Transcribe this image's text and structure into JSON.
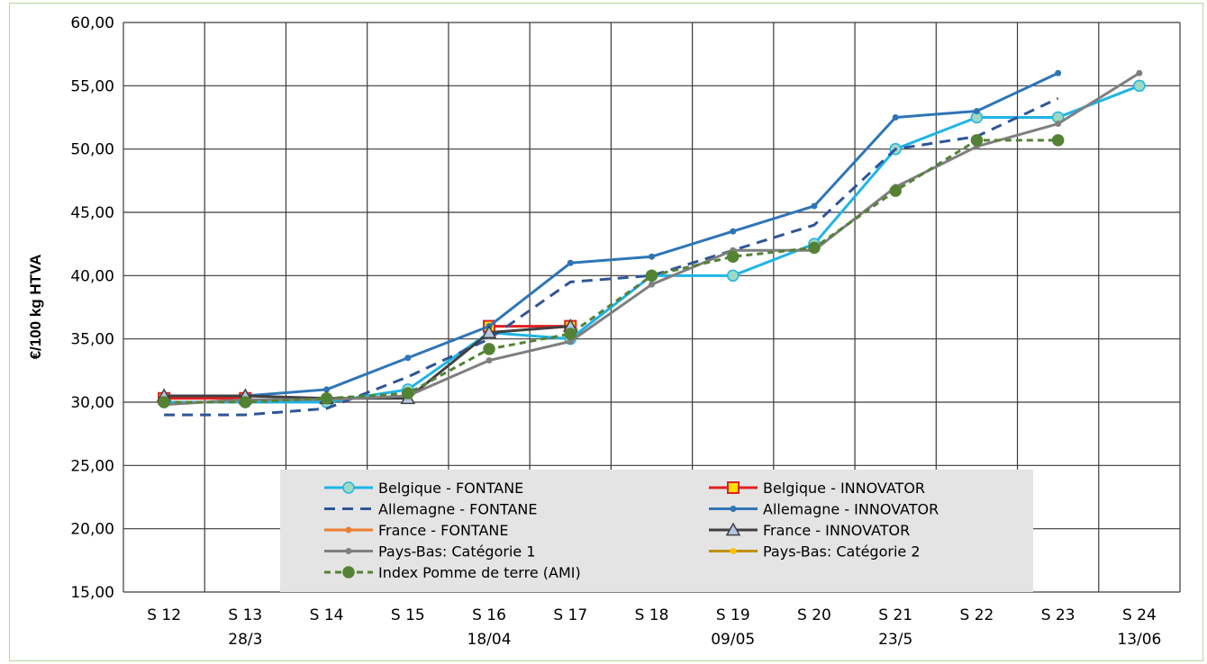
{
  "chart_data": {
    "type": "line",
    "title": "",
    "ylabel": "€/100 kg HTVA",
    "xlabel": "",
    "ylim": [
      15,
      60
    ],
    "ytick_step": 5,
    "ytick_labels": [
      "15,00",
      "20,00",
      "25,00",
      "30,00",
      "35,00",
      "40,00",
      "45,00",
      "50,00",
      "55,00",
      "60,00"
    ],
    "grid": true,
    "legend_position": "bottom-center",
    "categories": [
      "S 12",
      "S 13",
      "S 14",
      "S 15",
      "S 16",
      "S 17",
      "S 18",
      "S 19",
      "S 20",
      "S 21",
      "S 22",
      "S 23",
      "S 24"
    ],
    "category_dates": [
      "",
      "28/3",
      "",
      "",
      "18/04",
      "",
      "",
      "09/05",
      "",
      "23/5",
      "",
      "",
      "13/06"
    ],
    "series": [
      {
        "name": "Belgique - FONTANE",
        "color": "#1fb4e6",
        "dash": "",
        "width": 3,
        "marker": "circle",
        "marker_fill": "#9fd9c2",
        "values": [
          30.0,
          30.0,
          30.0,
          31.0,
          35.5,
          35.0,
          40.0,
          40.0,
          42.5,
          50.0,
          52.5,
          52.5,
          55.0
        ]
      },
      {
        "name": "Belgique - INNOVATOR",
        "color": "#e02020",
        "dash": "",
        "width": 3,
        "marker": "square",
        "marker_fill": "#ffe000",
        "values": [
          30.3,
          30.3,
          null,
          null,
          36.0,
          36.0,
          null,
          null,
          null,
          null,
          null,
          null,
          null
        ]
      },
      {
        "name": "Allemagne - FONTANE",
        "color": "#2f5597",
        "dash": "12,8",
        "width": 3,
        "marker": "none",
        "marker_fill": "",
        "values": [
          29.0,
          29.0,
          29.5,
          32.0,
          35.0,
          39.5,
          40.0,
          42.0,
          44.0,
          50.0,
          51.0,
          54.0,
          null
        ]
      },
      {
        "name": "Allemagne - INNOVATOR",
        "color": "#2e75b6",
        "dash": "",
        "width": 3,
        "marker": "dot",
        "marker_fill": "#2e75b6",
        "values": [
          30.5,
          30.5,
          31.0,
          33.5,
          36.0,
          41.0,
          41.5,
          43.5,
          45.5,
          52.5,
          53.0,
          56.0,
          null
        ]
      },
      {
        "name": "France - FONTANE",
        "color": "#ed7d31",
        "dash": "",
        "width": 3,
        "marker": "dot",
        "marker_fill": "#ed7d31",
        "values": [
          null,
          null,
          null,
          null,
          null,
          null,
          null,
          null,
          null,
          null,
          null,
          null,
          null
        ]
      },
      {
        "name": "France - INNOVATOR",
        "color": "#404040",
        "dash": "",
        "width": 3,
        "marker": "triangle",
        "marker_fill": "#b4c7e7",
        "values": [
          30.5,
          30.5,
          30.3,
          30.3,
          35.5,
          36.0,
          null,
          null,
          null,
          null,
          null,
          null,
          null
        ]
      },
      {
        "name": "Pays-Bas: Catégorie 1",
        "color": "#7f7f7f",
        "dash": "",
        "width": 3,
        "marker": "dot",
        "marker_fill": "#7f7f7f",
        "values": [
          29.8,
          30.2,
          30.2,
          30.5,
          33.3,
          34.8,
          39.3,
          42.0,
          42.0,
          47.0,
          50.2,
          52.0,
          56.0
        ]
      },
      {
        "name": "Pays-Bas: Catégorie 2",
        "color": "#bf9000",
        "dash": "",
        "width": 3,
        "marker": "dot",
        "marker_fill": "#ffc000",
        "values": [
          null,
          null,
          null,
          null,
          null,
          null,
          null,
          null,
          null,
          null,
          null,
          null,
          null
        ]
      },
      {
        "name": "Index Pomme de terre (AMI)",
        "color": "#548235",
        "dash": "7,5",
        "width": 3,
        "marker": "circle",
        "marker_fill": "#548235",
        "values": [
          30.0,
          30.0,
          30.3,
          30.7,
          34.2,
          35.4,
          40.0,
          41.5,
          42.2,
          46.7,
          50.7,
          50.7,
          null
        ]
      }
    ]
  }
}
